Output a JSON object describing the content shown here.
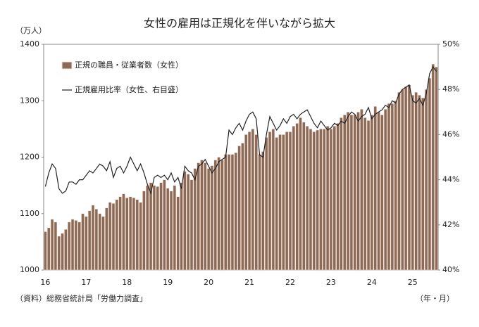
{
  "chart_data": {
    "type": "bar",
    "title": "女性の雇用は正規化を伴いながら拡大",
    "y_label": "（万人）",
    "x_label": "（年・月）",
    "source": "（資料）総務省統計局「労働力調査」",
    "categories": [
      "16",
      null,
      null,
      null,
      null,
      null,
      null,
      null,
      null,
      null,
      null,
      null,
      "17",
      null,
      null,
      null,
      null,
      null,
      null,
      null,
      null,
      null,
      null,
      null,
      "18",
      null,
      null,
      null,
      null,
      null,
      null,
      null,
      null,
      null,
      null,
      null,
      "19",
      null,
      null,
      null,
      null,
      null,
      null,
      null,
      null,
      null,
      null,
      null,
      "20",
      null,
      null,
      null,
      null,
      null,
      null,
      null,
      null,
      null,
      null,
      null,
      "21",
      null,
      null,
      null,
      null,
      null,
      null,
      null,
      null,
      null,
      null,
      null,
      "22",
      null,
      null,
      null,
      null,
      null,
      null,
      null,
      null,
      null,
      null,
      null,
      "23",
      null,
      null,
      null,
      null,
      null,
      null,
      null,
      null,
      null,
      null,
      null,
      "24",
      null,
      null,
      null,
      null,
      null,
      null,
      null,
      null,
      null,
      null,
      null,
      "25",
      null,
      null,
      null,
      null,
      null,
      null,
      null
    ],
    "series": [
      {
        "name": "正規の職員・従業者数（女性）",
        "type": "bar",
        "color": "#8c6a58",
        "values": [
          1068,
          1075,
          1090,
          1085,
          1060,
          1065,
          1072,
          1085,
          1090,
          1088,
          1085,
          1100,
          1095,
          1105,
          1115,
          1108,
          1100,
          1095,
          1110,
          1120,
          1118,
          1125,
          1130,
          1135,
          1128,
          1130,
          1128,
          1125,
          1120,
          1140,
          1150,
          1155,
          1150,
          1148,
          1155,
          1160,
          1145,
          1140,
          1150,
          1130,
          1155,
          1175,
          1170,
          1160,
          1180,
          1190,
          1195,
          1190,
          1180,
          1185,
          1195,
          1200,
          1195,
          1205,
          1205,
          1205,
          1208,
          1220,
          1225,
          1240,
          1245,
          1250,
          1240,
          1205,
          1210,
          1235,
          1245,
          1250,
          1235,
          1240,
          1240,
          1245,
          1245,
          1255,
          1260,
          1270,
          1262,
          1255,
          1250,
          1245,
          1248,
          1250,
          1250,
          1255,
          1250,
          1255,
          1260,
          1270,
          1275,
          1280,
          1275,
          1275,
          1280,
          1285,
          1270,
          1265,
          1275,
          1290,
          1280,
          1275,
          1285,
          1295,
          1295,
          1300,
          1315,
          1320,
          1325,
          1328,
          1310,
          1315,
          1310,
          1305,
          1320,
          1340,
          1365,
          1360
        ]
      },
      {
        "name": "正規雇用比率（女性、右目盛）",
        "type": "line",
        "axis": "y2",
        "color": "#222222",
        "values": [
          43.7,
          44.3,
          44.7,
          44.5,
          43.6,
          43.4,
          43.5,
          43.9,
          43.9,
          43.8,
          44.0,
          44.0,
          44.2,
          44.4,
          44.3,
          44.5,
          44.7,
          44.6,
          44.4,
          44.8,
          44.1,
          44.5,
          44.6,
          44.3,
          44.6,
          45.0,
          44.7,
          44.4,
          44.7,
          44.3,
          43.8,
          43.4,
          44.1,
          44.2,
          44.1,
          44.2,
          44.0,
          44.3,
          43.9,
          44.1,
          43.6,
          44.6,
          44.4,
          44.3,
          44.0,
          44.6,
          44.7,
          44.9,
          44.6,
          44.3,
          44.5,
          44.8,
          44.9,
          45.0,
          46.2,
          46.0,
          46.3,
          46.5,
          46.2,
          46.6,
          46.9,
          47.0,
          46.7,
          45.1,
          45.0,
          46.0,
          46.8,
          46.5,
          46.2,
          46.4,
          46.7,
          46.5,
          46.8,
          46.9,
          46.7,
          46.9,
          47.0,
          47.1,
          46.8,
          46.5,
          46.3,
          46.6,
          46.4,
          46.2,
          46.3,
          46.5,
          46.4,
          46.6,
          46.5,
          46.8,
          47.0,
          46.9,
          46.6,
          46.8,
          46.9,
          47.2,
          46.7,
          46.9,
          47.0,
          47.1,
          47.3,
          47.2,
          47.5,
          47.4,
          47.8,
          48.0,
          48.1,
          48.2,
          47.5,
          47.4,
          47.6,
          47.3,
          47.8,
          48.7,
          49.0,
          48.8
        ]
      }
    ],
    "ylim": [
      1000,
      1400
    ],
    "yticks": [
      1000,
      1100,
      1200,
      1300,
      1400
    ],
    "y2lim": [
      40,
      50
    ],
    "y2ticks": [
      {
        "value": 40,
        "label": "40%"
      },
      {
        "value": 42,
        "label": "42%"
      },
      {
        "value": 44,
        "label": "44%"
      },
      {
        "value": 46,
        "label": "46%"
      },
      {
        "value": 48,
        "label": "48%"
      },
      {
        "value": 50,
        "label": "50%"
      }
    ],
    "legend": "upper left"
  }
}
